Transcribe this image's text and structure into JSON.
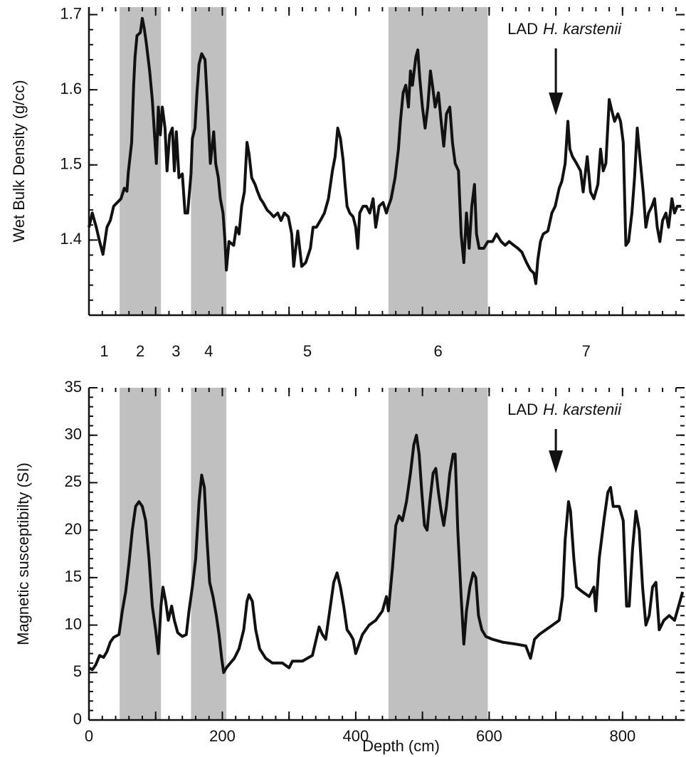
{
  "chart_data": [
    {
      "type": "line",
      "ylabel": "Wet Bulk Density (g/cc)",
      "color": "#111111",
      "line_width": 4,
      "xlim": [
        0,
        893
      ],
      "ylim": [
        1.3,
        1.71
      ],
      "yticks": [
        1.4,
        1.5,
        1.6,
        1.7
      ],
      "y_minor_step": 0.02,
      "x_major_step": 100,
      "x_minor_step": 20,
      "x": [
        0,
        5,
        11,
        16,
        21,
        27,
        32,
        37,
        48,
        53,
        57,
        59,
        64,
        67,
        69,
        72,
        77,
        80,
        83,
        86,
        91,
        95,
        99,
        101,
        104,
        107,
        110,
        114,
        117,
        121,
        125,
        128,
        131,
        135,
        140,
        144,
        148,
        153,
        155,
        159,
        162,
        165,
        169,
        174,
        178,
        182,
        187,
        190,
        194,
        197,
        201,
        204,
        206,
        210,
        217,
        221,
        225,
        229,
        233,
        237,
        240,
        244,
        249,
        253,
        257,
        261,
        267,
        272,
        277,
        283,
        288,
        293,
        299,
        304,
        307,
        313,
        319,
        325,
        332,
        336,
        341,
        347,
        353,
        359,
        365,
        369,
        373,
        377,
        381,
        384,
        387,
        391,
        396,
        400,
        403,
        406,
        411,
        416,
        421,
        426,
        430,
        435,
        441,
        446,
        449,
        453,
        459,
        464,
        467,
        471,
        475,
        479,
        482,
        485,
        490,
        493,
        496,
        500,
        504,
        508,
        512,
        515,
        519,
        524,
        528,
        532,
        536,
        541,
        545,
        549,
        554,
        558,
        562,
        566,
        570,
        574,
        578,
        581,
        585,
        592,
        598,
        605,
        611,
        618,
        624,
        630,
        637,
        643,
        649,
        656,
        662,
        667,
        670,
        673,
        677,
        681,
        688,
        694,
        699,
        705,
        709,
        714,
        718,
        721,
        725,
        731,
        737,
        741,
        747,
        752,
        757,
        763,
        767,
        771,
        775,
        780,
        784,
        788,
        793,
        797,
        801,
        805,
        809,
        814,
        818,
        822,
        827,
        831,
        835,
        839,
        844,
        848,
        852,
        856,
        860,
        865,
        869,
        874,
        878,
        882,
        888
      ],
      "values": [
        1.417,
        1.436,
        1.417,
        1.398,
        1.381,
        1.417,
        1.426,
        1.445,
        1.455,
        1.469,
        1.465,
        1.49,
        1.53,
        1.606,
        1.643,
        1.672,
        1.676,
        1.695,
        1.681,
        1.662,
        1.625,
        1.587,
        1.53,
        1.502,
        1.577,
        1.54,
        1.577,
        1.549,
        1.492,
        1.54,
        1.549,
        1.492,
        1.544,
        1.483,
        1.488,
        1.436,
        1.436,
        1.488,
        1.535,
        1.549,
        1.596,
        1.634,
        1.648,
        1.64,
        1.577,
        1.502,
        1.544,
        1.502,
        1.483,
        1.455,
        1.436,
        1.398,
        1.36,
        1.398,
        1.393,
        1.417,
        1.408,
        1.445,
        1.464,
        1.53,
        1.515,
        1.483,
        1.474,
        1.464,
        1.455,
        1.45,
        1.44,
        1.436,
        1.431,
        1.436,
        1.426,
        1.436,
        1.431,
        1.408,
        1.365,
        1.412,
        1.365,
        1.37,
        1.389,
        1.417,
        1.417,
        1.426,
        1.436,
        1.455,
        1.492,
        1.511,
        1.549,
        1.535,
        1.507,
        1.474,
        1.445,
        1.436,
        1.431,
        1.417,
        1.389,
        1.436,
        1.445,
        1.445,
        1.436,
        1.455,
        1.417,
        1.445,
        1.45,
        1.436,
        1.445,
        1.455,
        1.483,
        1.521,
        1.558,
        1.596,
        1.606,
        1.577,
        1.625,
        1.606,
        1.643,
        1.653,
        1.615,
        1.577,
        1.549,
        1.577,
        1.625,
        1.606,
        1.577,
        1.596,
        1.558,
        1.525,
        1.568,
        1.577,
        1.53,
        1.502,
        1.492,
        1.408,
        1.37,
        1.436,
        1.389,
        1.445,
        1.474,
        1.408,
        1.389,
        1.389,
        1.398,
        1.398,
        1.408,
        1.398,
        1.393,
        1.398,
        1.393,
        1.389,
        1.384,
        1.37,
        1.36,
        1.356,
        1.342,
        1.374,
        1.398,
        1.408,
        1.412,
        1.436,
        1.445,
        1.469,
        1.478,
        1.502,
        1.558,
        1.521,
        1.511,
        1.502,
        1.492,
        1.464,
        1.511,
        1.464,
        1.455,
        1.474,
        1.521,
        1.492,
        1.502,
        1.587,
        1.572,
        1.558,
        1.568,
        1.558,
        1.53,
        1.393,
        1.398,
        1.436,
        1.483,
        1.549,
        1.502,
        1.464,
        1.417,
        1.436,
        1.445,
        1.455,
        1.417,
        1.398,
        1.426,
        1.436,
        1.417,
        1.455,
        1.436,
        1.445,
        1.445
      ],
      "annotation": {
        "label": "LAD",
        "taxon": "H. karstenii",
        "x": 700,
        "y": 1.566
      }
    },
    {
      "type": "line",
      "ylabel": "Magnetic susceptibilty (SI)",
      "xlabel": "Depth (cm)",
      "color": "#111111",
      "line_width": 4,
      "xlim": [
        0,
        893
      ],
      "ylim": [
        0,
        35
      ],
      "yticks": [
        0,
        5,
        10,
        15,
        20,
        25,
        30,
        35
      ],
      "xticks": [
        0,
        200,
        400,
        600,
        800
      ],
      "y_minor_step": 1,
      "x_major_step": 100,
      "x_minor_step": 20,
      "x": [
        0,
        5,
        10,
        16,
        22,
        27,
        32,
        37,
        45,
        50,
        55,
        60,
        65,
        70,
        75,
        80,
        85,
        90,
        95,
        100,
        104,
        108,
        111,
        115,
        119,
        124,
        128,
        133,
        140,
        146,
        150,
        155,
        160,
        165,
        169,
        173,
        177,
        181,
        186,
        191,
        195,
        199,
        202,
        206,
        212,
        218,
        225,
        232,
        237,
        240,
        245,
        250,
        256,
        265,
        275,
        290,
        300,
        305,
        320,
        335,
        345,
        350,
        355,
        360,
        367,
        372,
        377,
        382,
        387,
        392,
        396,
        400,
        405,
        410,
        420,
        430,
        440,
        446,
        449,
        455,
        460,
        465,
        470,
        476,
        482,
        487,
        491,
        495,
        499,
        503,
        507,
        511,
        516,
        520,
        524,
        528,
        532,
        536,
        541,
        546,
        549,
        553,
        558,
        562,
        566,
        571,
        576,
        580,
        584,
        589,
        595,
        605,
        620,
        640,
        655,
        662,
        668,
        675,
        685,
        695,
        705,
        710,
        714,
        719,
        722,
        727,
        731,
        740,
        750,
        757,
        760,
        765,
        772,
        778,
        782,
        786,
        795,
        801,
        806,
        810,
        815,
        820,
        825,
        830,
        835,
        840,
        845,
        850,
        855,
        862,
        870,
        878,
        884,
        890
      ],
      "values": [
        5.5,
        5.3,
        5.8,
        6.8,
        6.6,
        7.2,
        8.2,
        8.7,
        9,
        11.5,
        13.5,
        16.5,
        20,
        22.5,
        23,
        22.5,
        21,
        17,
        12,
        9.5,
        7,
        12,
        14,
        12.5,
        10.5,
        12,
        10.5,
        9.2,
        8.8,
        9,
        11.5,
        14,
        17,
        23,
        25.8,
        24.5,
        19,
        14.5,
        13,
        11,
        9,
        6.5,
        5,
        5.5,
        6,
        6.5,
        7.5,
        9.5,
        12.5,
        13.2,
        12.5,
        9.5,
        7.5,
        6.5,
        6,
        6,
        5.5,
        6.2,
        6.2,
        6.8,
        9.8,
        9,
        8.5,
        11,
        14.5,
        15.5,
        14,
        12,
        9.5,
        9,
        8.5,
        7,
        8,
        9,
        10,
        10.5,
        11.5,
        13,
        11.5,
        16,
        20.5,
        21.5,
        21,
        23,
        26,
        29,
        30,
        28,
        24,
        20.5,
        20,
        23,
        26,
        26.5,
        24,
        22,
        20.5,
        22.5,
        26,
        28,
        28,
        20,
        13,
        8,
        11.5,
        14,
        15.5,
        15,
        11,
        9.5,
        8.8,
        8.5,
        8.2,
        8,
        7.8,
        6.5,
        8.5,
        9,
        9.5,
        10,
        10.5,
        13,
        19,
        23,
        22,
        17,
        14,
        13.5,
        13,
        14,
        11.5,
        17,
        21,
        24,
        24.5,
        22.5,
        22.5,
        21,
        12,
        12,
        18,
        22,
        20,
        14,
        10,
        11,
        14,
        14.5,
        9.5,
        10.5,
        11,
        10.5,
        12,
        13.5
      ],
      "annotation": {
        "label": "LAD",
        "taxon": "H. karstenii",
        "x": 700,
        "y": 26
      }
    }
  ],
  "zones": {
    "labels": [
      "1",
      "2",
      "3",
      "4",
      "5",
      "6",
      "7"
    ],
    "shaded": [
      [
        46,
        108
      ],
      [
        153,
        206
      ],
      [
        449,
        598
      ]
    ],
    "color": "#c0c0c0"
  }
}
